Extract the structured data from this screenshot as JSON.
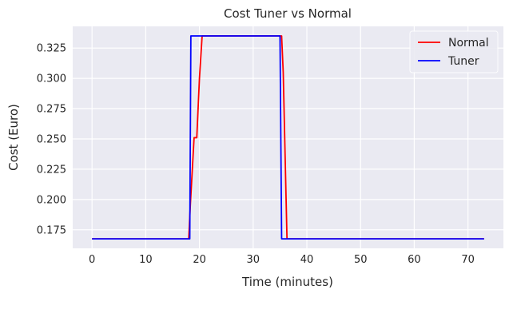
{
  "chart_data": {
    "type": "line",
    "title": "Cost Tuner vs Normal",
    "xlabel": "Time (minutes)",
    "ylabel": "Cost (Euro)",
    "xlim": [
      -3.6,
      76.6
    ],
    "ylim": [
      0.1597,
      0.3429
    ],
    "xticks": [
      0,
      10,
      20,
      30,
      40,
      50,
      60,
      70
    ],
    "yticks": [
      0.175,
      0.2,
      0.225,
      0.25,
      0.275,
      0.3,
      0.325
    ],
    "ytick_labels": [
      "0.175",
      "0.200",
      "0.225",
      "0.250",
      "0.275",
      "0.300",
      "0.325"
    ],
    "grid": true,
    "legend_position": "top-right",
    "series": [
      {
        "name": "Normal",
        "color": "#ff0000",
        "points": [
          [
            0,
            0.1675
          ],
          [
            18.0,
            0.1675
          ],
          [
            18.3,
            0.195
          ],
          [
            19.0,
            0.251
          ],
          [
            19.5,
            0.251
          ],
          [
            20.0,
            0.3
          ],
          [
            20.5,
            0.335
          ],
          [
            35.3,
            0.335
          ],
          [
            35.6,
            0.305
          ],
          [
            36.3,
            0.1675
          ],
          [
            73,
            0.1675
          ]
        ]
      },
      {
        "name": "Tuner",
        "color": "#0000ff",
        "points": [
          [
            0,
            0.1675
          ],
          [
            18.2,
            0.1675
          ],
          [
            18.4,
            0.335
          ],
          [
            35.0,
            0.335
          ],
          [
            35.3,
            0.1675
          ],
          [
            73,
            0.1675
          ]
        ]
      }
    ]
  }
}
